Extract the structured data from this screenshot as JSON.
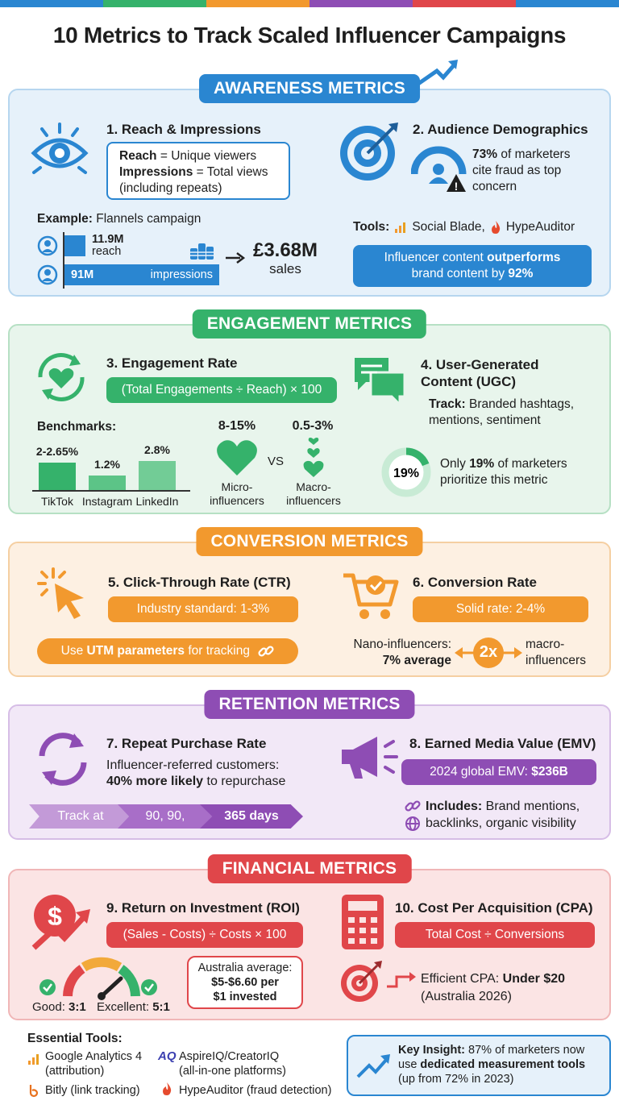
{
  "colors": {
    "blue": "#2a86d1",
    "green": "#35b26b",
    "orange": "#f2992e",
    "purple": "#8e4db4",
    "red": "#e0464a"
  },
  "title": "10 Metrics to Track Scaled Influencer Campaigns",
  "awareness": {
    "label": "AWARENESS METRICS",
    "m1": {
      "heading": "1. Reach & Impressions",
      "reach_term": "Reach",
      "reach_def": " = Unique viewers",
      "imp_term": "Impressions",
      "imp_def": " = Total views",
      "imp_note": "(including repeats)",
      "example_label": "Example:",
      "example_name": " Flannels campaign",
      "reach_value": "11.9M",
      "reach_word": "reach",
      "imp_value": "91M",
      "imp_word": "impressions",
      "sales_value": "£3.68M",
      "sales_word": "sales"
    },
    "m2": {
      "heading": "2. Audience Demographics",
      "stat_pct": "73%",
      "stat_rest": " of marketers",
      "stat_line2": "cite fraud as top",
      "stat_line3": "concern",
      "tools_label": "Tools:",
      "tool1": "Social Blade,",
      "tool2": "HypeAuditor",
      "banner_a": "Influencer content ",
      "banner_b": "outperforms",
      "banner_c": "brand content by ",
      "banner_d": "92%"
    }
  },
  "engagement": {
    "label": "ENGAGEMENT METRICS",
    "m3": {
      "heading": "3. Engagement Rate",
      "formula": "(Total Engagements ÷ Reach) × 100",
      "benchmarks_label": "Benchmarks:",
      "bars": [
        {
          "platform": "TikTok",
          "value": "2-2.65%"
        },
        {
          "platform": "Instagram",
          "value": "1.2%"
        },
        {
          "platform": "LinkedIn",
          "value": "2.8%"
        }
      ],
      "micro_value": "8-15%",
      "micro_label1": "Micro-",
      "micro_label2": "influencers",
      "vs": "VS",
      "macro_value": "0.5-3%",
      "macro_label1": "Macro-",
      "macro_label2": "influencers"
    },
    "m4": {
      "heading1": "4. User-Generated",
      "heading2": "Content (UGC)",
      "track_label": "Track:",
      "track_items": " Branded hashtags,",
      "track_items2": "mentions, sentiment",
      "donut_value": "19%",
      "donut_fraction": 0.19,
      "note_a": "Only ",
      "note_b": "19%",
      "note_c": " of marketers",
      "note_line2": "prioritize this metric"
    }
  },
  "conversion": {
    "label": "CONVERSION METRICS",
    "m5": {
      "heading": "5. Click-Through Rate (CTR)",
      "standard": "Industry standard: 1-3%",
      "utm_a": "Use ",
      "utm_b": "UTM parameters",
      "utm_c": " for tracking"
    },
    "m6": {
      "heading": "6. Conversion Rate",
      "solid": "Solid rate: 2-4%",
      "nano_line1": "Nano-influencers:",
      "nano_line2": "7% average",
      "multiplier": "2x",
      "macro_line1": "macro-",
      "macro_line2": "influencers"
    }
  },
  "retention": {
    "label": "RETENTION METRICS",
    "m7": {
      "heading": "7. Repeat Purchase Rate",
      "line1": "Influencer-referred customers:",
      "line2_bold": "40% more likely",
      "line2_rest": " to repurchase",
      "chevrons": [
        "Track at",
        "90, 90,",
        "365 days"
      ]
    },
    "m8": {
      "heading": "8. Earned Media Value (EMV)",
      "emv_a": "2024 global EMV: ",
      "emv_b": "$236B",
      "inc_label": "Includes:",
      "inc_line1": " Brand mentions,",
      "inc_line2": "backlinks, organic visibility"
    }
  },
  "financial": {
    "label": "FINANCIAL METRICS",
    "m9": {
      "heading": "9. Return on Investment (ROI)",
      "formula": "(Sales - Costs) ÷ Costs × 100",
      "good_label": "Good: ",
      "good_value": "3:1",
      "excellent_label": "Excellent: ",
      "excellent_value": "5:1",
      "aus_line1": "Australia average:",
      "aus_line2": "$5-$6.60 per",
      "aus_line3": "$1 invested"
    },
    "m10": {
      "heading": "10. Cost Per Acquisition (CPA)",
      "formula": "Total Cost ÷ Conversions",
      "efficient_a": "Efficient CPA: ",
      "efficient_b": "Under $20",
      "efficient_line2": "(Australia 2026)"
    }
  },
  "tools": {
    "label": "Essential Tools:",
    "items": [
      {
        "name": "Google Analytics 4",
        "note": "(attribution)"
      },
      {
        "name": "AspireIQ/CreatorIQ",
        "note": "(all-in-one platforms)"
      },
      {
        "name": "Bitly (link tracking)",
        "note": ""
      },
      {
        "name": "HypeAuditor (fraud detection)",
        "note": ""
      }
    ]
  },
  "insight": {
    "label": "Key Insight:",
    "a": " 87% of marketers now",
    "b": "use ",
    "c": "dedicated measurement tools",
    "d": "(up from 72% in 2023)"
  }
}
